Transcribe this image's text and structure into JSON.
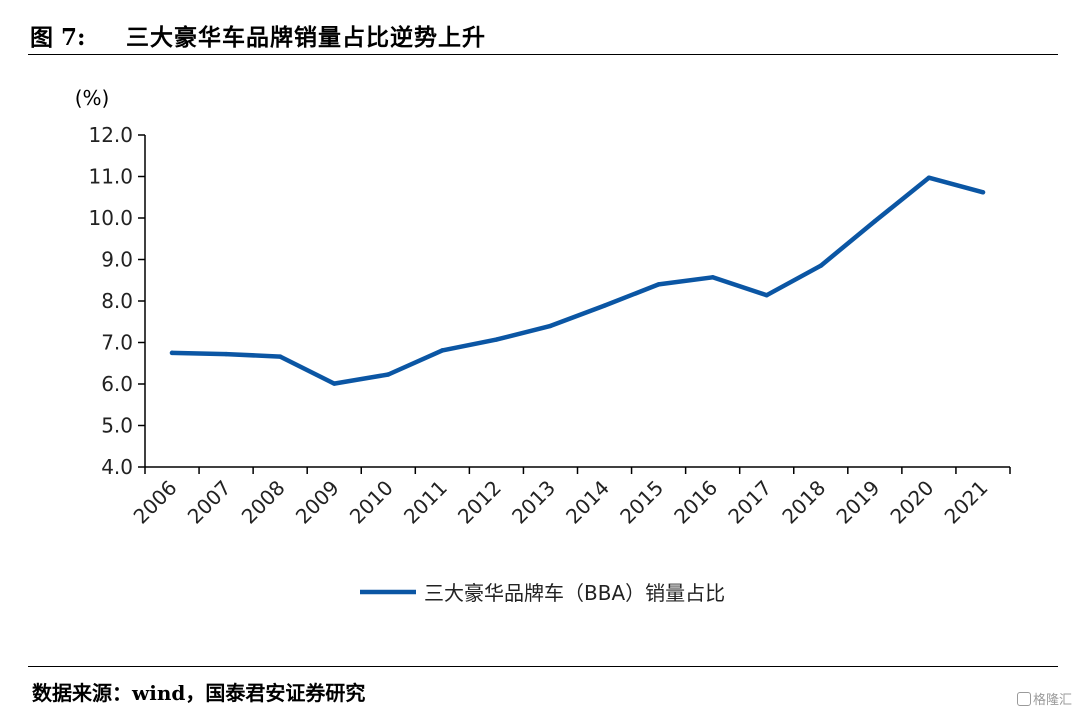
{
  "figure": {
    "number": "图 7:",
    "title": "三大豪华车品牌销量占比逆势上升"
  },
  "source": "数据来源：wind，国泰君安证券研究",
  "watermark": "格隆汇",
  "chart_data": {
    "type": "line",
    "unit_label": "(%)",
    "categories": [
      "2006",
      "2007",
      "2008",
      "2009",
      "2010",
      "2011",
      "2012",
      "2013",
      "2014",
      "2015",
      "2016",
      "2017",
      "2018",
      "2019",
      "2020",
      "2021"
    ],
    "series": [
      {
        "name": "三大豪华品牌车（BBA）销量占比",
        "color": "#0b56a4",
        "values": [
          6.75,
          6.72,
          6.66,
          6.01,
          6.23,
          6.81,
          7.07,
          7.4,
          7.89,
          8.4,
          8.57,
          8.14,
          8.85,
          9.92,
          10.97,
          10.62
        ]
      }
    ],
    "ylim": [
      4.0,
      12.0
    ],
    "yticks": [
      "4.0",
      "5.0",
      "6.0",
      "7.0",
      "8.0",
      "9.0",
      "10.0",
      "11.0",
      "12.0"
    ],
    "legend_position": "bottom-center",
    "grid": false
  }
}
